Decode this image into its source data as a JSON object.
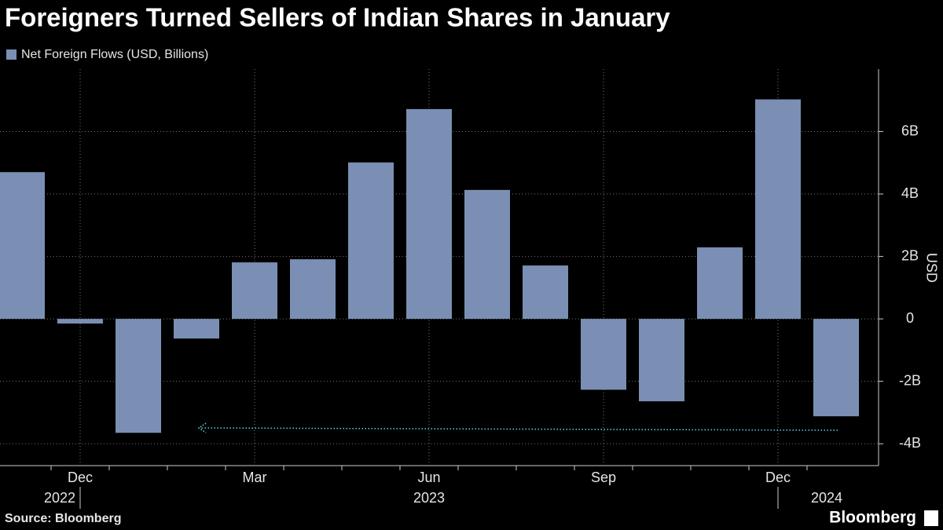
{
  "chart_data": {
    "type": "bar",
    "title": "Foreigners Turned Sellers of Indian Shares in January",
    "series": [
      {
        "name": "Net Foreign Flows (USD, Billions)",
        "color": "#7a8fb3",
        "values": [
          4.7,
          -0.15,
          -3.65,
          -0.63,
          1.81,
          1.91,
          5.01,
          6.72,
          4.13,
          1.71,
          -2.27,
          -2.64,
          2.29,
          7.03,
          -3.12
        ]
      }
    ],
    "categories": [
      null,
      "Dec",
      null,
      null,
      "Mar",
      null,
      null,
      "Jun",
      null,
      null,
      "Sep",
      null,
      null,
      "Dec",
      null
    ],
    "year_labels": [
      "2022",
      "2023",
      "2024"
    ],
    "y_axis_label": "USD",
    "ylim": [
      -4.7,
      8
    ],
    "yticks": [
      {
        "value": -4,
        "label": "-4B"
      },
      {
        "value": -2,
        "label": "-2B"
      },
      0,
      {
        "value": 2,
        "label": "2B"
      },
      {
        "value": 4,
        "label": "4B"
      },
      {
        "value": 6,
        "label": "6B"
      }
    ],
    "grid": true,
    "source": "Source: Bloomberg",
    "brand": "Bloomberg"
  }
}
